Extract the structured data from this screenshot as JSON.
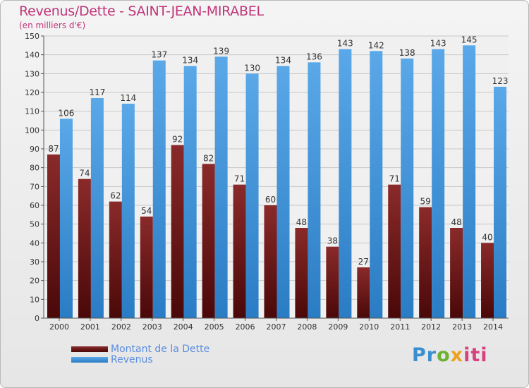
{
  "header": {
    "title": "Revenus/Dette - SAINT-JEAN-MIRABEL",
    "subtitle": "(en milliers d'€)"
  },
  "colors": {
    "debt": "#7b1f1f",
    "revenue": "#3b8fd6",
    "title": "#c0357a"
  },
  "chart_data": {
    "type": "bar",
    "title": "Revenus/Dette - SAINT-JEAN-MIRABEL",
    "ylabel": "(en milliers d'€)",
    "xlabel": "",
    "categories": [
      "2000",
      "2001",
      "2002",
      "2003",
      "2004",
      "2005",
      "2006",
      "2007",
      "2008",
      "2009",
      "2010",
      "2011",
      "2012",
      "2013",
      "2014"
    ],
    "series": [
      {
        "name": "Montant de la Dette",
        "values": [
          87,
          74,
          62,
          54,
          92,
          82,
          71,
          60,
          48,
          38,
          27,
          71,
          59,
          48,
          40
        ]
      },
      {
        "name": "Revenus",
        "values": [
          106,
          117,
          114,
          137,
          134,
          139,
          130,
          134,
          136,
          143,
          142,
          138,
          143,
          145,
          123
        ]
      }
    ],
    "ylim": [
      0,
      150
    ],
    "yticks": [
      0,
      10,
      20,
      30,
      40,
      50,
      60,
      70,
      80,
      90,
      100,
      110,
      120,
      130,
      140,
      150
    ],
    "grid": true,
    "legend_position": "bottom-left"
  },
  "legend": {
    "debt_label": "Montant de la Dette",
    "revenue_label": "Revenus"
  },
  "logo": {
    "p1": "Pr",
    "p2": "o",
    "p3": "x",
    "p4": "iti"
  }
}
